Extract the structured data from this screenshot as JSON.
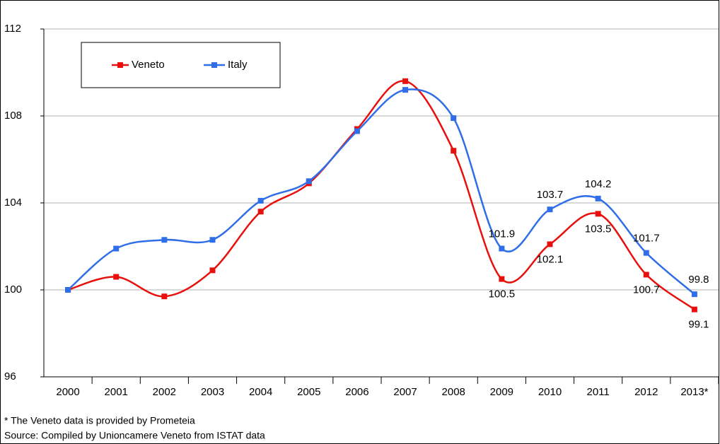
{
  "chart_data": {
    "type": "line",
    "categories": [
      "2000",
      "2001",
      "2002",
      "2003",
      "2004",
      "2005",
      "2006",
      "2007",
      "2008",
      "2009",
      "2010",
      "2011",
      "2012",
      "2013*"
    ],
    "series": [
      {
        "name": "Veneto",
        "color": "#e8100c",
        "values": [
          100,
          100.6,
          99.7,
          100.9,
          103.6,
          104.9,
          107.4,
          109.6,
          106.4,
          100.5,
          102.1,
          103.5,
          100.7,
          99.1
        ],
        "value_labels": [
          null,
          null,
          null,
          null,
          null,
          null,
          null,
          null,
          null,
          "100.5",
          "102.1",
          "103.5",
          "100.7",
          "99.1"
        ]
      },
      {
        "name": "Italy",
        "color": "#2f6ee8",
        "values": [
          100,
          101.9,
          102.3,
          102.3,
          104.1,
          105.0,
          107.3,
          109.2,
          107.9,
          101.9,
          103.7,
          104.2,
          101.7,
          99.8
        ],
        "value_labels": [
          null,
          null,
          null,
          null,
          null,
          null,
          null,
          null,
          null,
          "101.9",
          "103.7",
          "104.2",
          "101.7",
          "99.8"
        ]
      }
    ],
    "ylim": [
      96,
      112
    ],
    "yticks": [
      96,
      100,
      104,
      108,
      112
    ],
    "grid": true,
    "smooth": true,
    "notes": [
      "* The Veneto data is provided by Prometeia",
      "Source: Compiled by Unioncamere Veneto from ISTAT data"
    ]
  }
}
